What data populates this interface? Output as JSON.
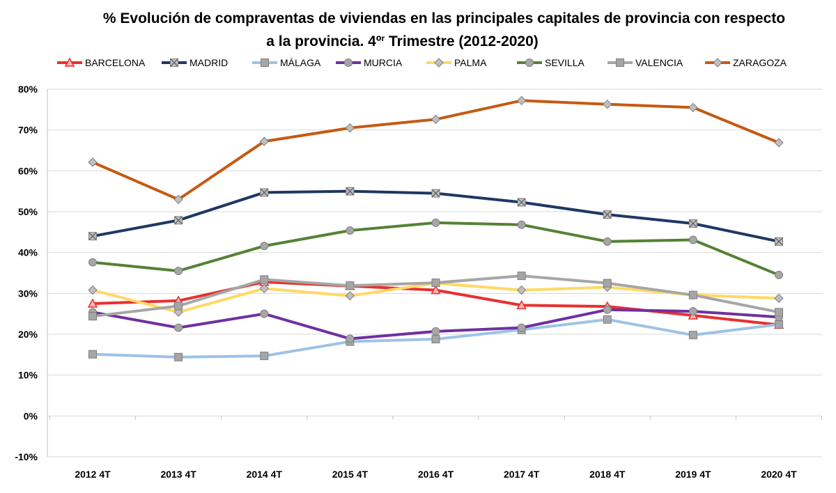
{
  "chart_data": {
    "type": "line",
    "title_line1": "% Evolución de compraventas de viviendas en las principales capitales de provincia con respecto",
    "title_line2_prefix": "a la provincia.  4º",
    "title_line2_sup": "r",
    "title_line2_suffix": " Trimestre (2012-2020)",
    "xlabel": "",
    "ylabel": "",
    "ylim": [
      -10,
      80
    ],
    "ytick_step": 10,
    "y_unit": "%",
    "grid": "horizontal",
    "legend_position": "top",
    "categories": [
      "2012 4T",
      "2013 4T",
      "2014 4T",
      "2015 4T",
      "2016 4T",
      "2017 4T",
      "2018 4T",
      "2019 4T",
      "2020 4T"
    ],
    "series": [
      {
        "name": "BARCELONA",
        "color": "#e8302f",
        "marker": "triangle",
        "values": [
          27.5,
          28.2,
          32.8,
          31.8,
          30.8,
          27.1,
          26.8,
          24.6,
          22.3
        ]
      },
      {
        "name": "MADRID",
        "color": "#1f3864",
        "marker": "x-square",
        "values": [
          44.0,
          47.9,
          54.7,
          55.0,
          54.5,
          52.3,
          49.3,
          47.1,
          42.7
        ]
      },
      {
        "name": "MÁLAGA",
        "color": "#9dc3e6",
        "marker": "square",
        "values": [
          15.1,
          14.4,
          14.7,
          18.2,
          18.8,
          21.1,
          23.6,
          19.8,
          22.4
        ]
      },
      {
        "name": "MURCIA",
        "color": "#7030a0",
        "marker": "circle",
        "values": [
          25.4,
          21.6,
          25.0,
          18.9,
          20.7,
          21.6,
          26.0,
          25.6,
          24.2
        ]
      },
      {
        "name": "PALMA",
        "color": "#ffd966",
        "marker": "diamond",
        "values": [
          30.8,
          25.4,
          31.2,
          29.4,
          32.5,
          30.8,
          31.5,
          29.6,
          28.8
        ]
      },
      {
        "name": "SEVILLA",
        "color": "#548235",
        "marker": "circle",
        "values": [
          37.6,
          35.5,
          41.6,
          45.4,
          47.3,
          46.8,
          42.7,
          43.1,
          34.5
        ]
      },
      {
        "name": "VALENCIA",
        "color": "#a6a6a6",
        "marker": "square",
        "values": [
          24.4,
          26.9,
          33.4,
          31.9,
          32.6,
          34.3,
          32.5,
          29.6,
          25.4
        ]
      },
      {
        "name": "ZARAGOZA",
        "color": "#c55a11",
        "marker": "diamond",
        "values": [
          62.1,
          53.0,
          67.2,
          70.5,
          72.6,
          77.2,
          76.3,
          75.5,
          66.9
        ]
      }
    ]
  }
}
